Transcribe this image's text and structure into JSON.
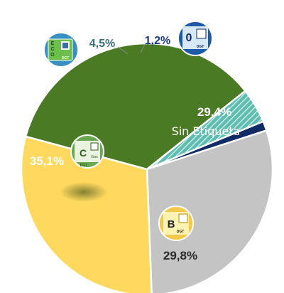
{
  "chart_data": {
    "type": "pie",
    "title": "",
    "slices": [
      {
        "label": "Sin Etiqueta",
        "value": 29.4,
        "value_label": "29,4%",
        "color": "#c4c4c4",
        "badge": "none"
      },
      {
        "label": "B",
        "value": 29.8,
        "value_label": "29,8%",
        "color": "#ffd95e",
        "badge": "B"
      },
      {
        "label": "C",
        "value": 35.1,
        "value_label": "35,1%",
        "color": "#4b7a24",
        "badge": "C"
      },
      {
        "label": "ECO",
        "value": 4.5,
        "value_label": "4,5%",
        "color": "#5fbcb0",
        "badge": "ECO"
      },
      {
        "label": "0",
        "value": 1.2,
        "value_label": "1,2%",
        "color": "#102b66",
        "badge": "0"
      }
    ],
    "badge_texts": {
      "dgt": "DGT",
      "b_letter": "B",
      "c_letter": "C",
      "c_caption": "Gas",
      "eco_letters": [
        "E",
        "C",
        "O"
      ],
      "zero": "0"
    }
  }
}
